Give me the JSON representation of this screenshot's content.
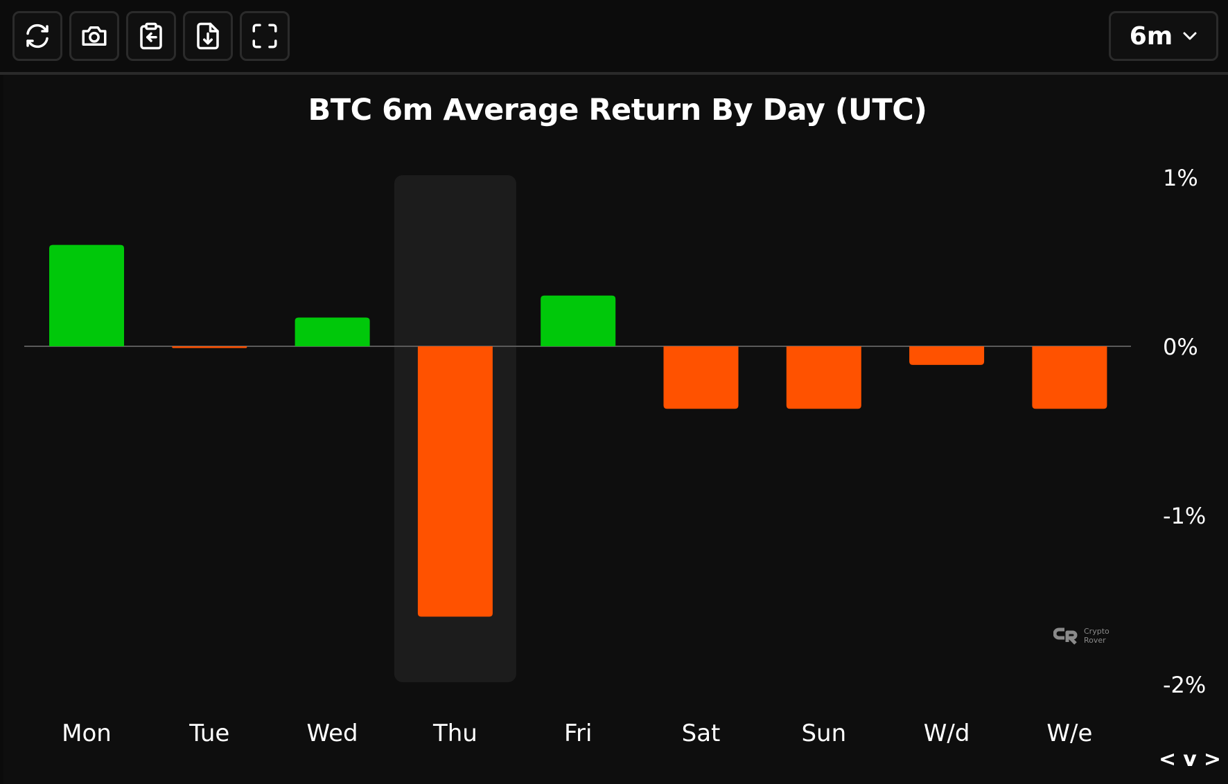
{
  "toolbar": {
    "buttons": [
      {
        "name": "refresh-icon"
      },
      {
        "name": "camera-icon"
      },
      {
        "name": "clipboard-icon"
      },
      {
        "name": "file-download-icon"
      },
      {
        "name": "fullscreen-icon"
      }
    ],
    "range": {
      "value": "6m",
      "icon": "chevron-down-icon"
    }
  },
  "chart_data": {
    "type": "bar",
    "title": "BTC 6m Average Return By Day (UTC)",
    "categories": [
      "Mon",
      "Tue",
      "Wed",
      "Thu",
      "Fri",
      "Sat",
      "Sun",
      "W/d",
      "W/e"
    ],
    "values": [
      0.6,
      -0.01,
      0.17,
      -1.6,
      0.3,
      -0.37,
      -0.37,
      -0.11,
      -0.37
    ],
    "ylim": [
      -2,
      1
    ],
    "yticks": [
      1,
      0,
      -1,
      -2
    ],
    "ytick_labels": [
      "1%",
      "0%",
      "-1%",
      "-2%"
    ],
    "highlighted_category": "Thu",
    "colors": {
      "positive": "#00c80a",
      "negative": "#ff5200",
      "highlight": "#1c1c1c",
      "zero_line": "#5a5a5a"
    },
    "grid": false
  },
  "watermark": {
    "line1": "Crypto",
    "line2": "Rover"
  },
  "nav": {
    "prev": "<",
    "toggle": "v",
    "next": ">"
  }
}
